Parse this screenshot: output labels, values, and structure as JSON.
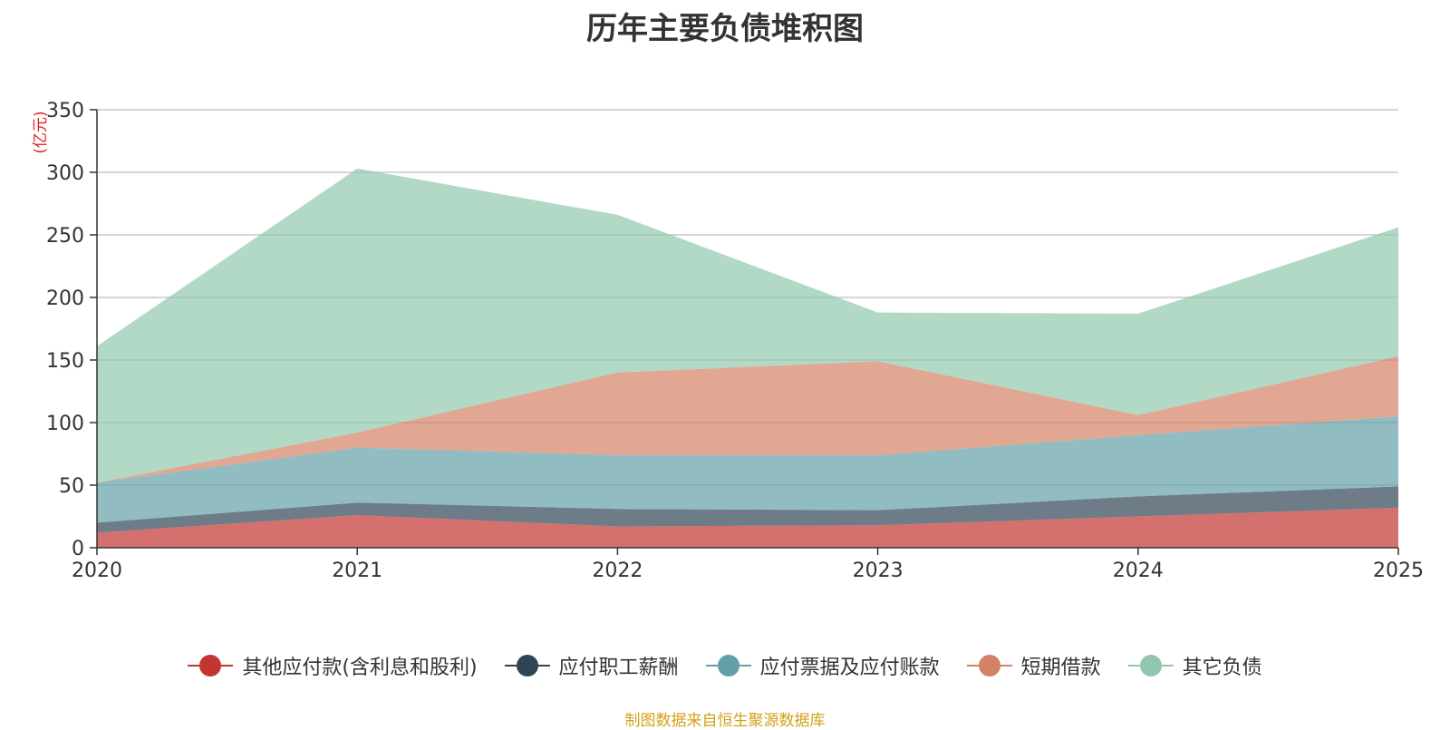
{
  "chart_data": {
    "type": "area",
    "stacked": true,
    "title": "历年主要负债堆积图",
    "ylabel": "(亿元)",
    "xlabel": "",
    "categories": [
      "2020",
      "2021",
      "2022",
      "2023",
      "2024",
      "2025"
    ],
    "ylim": [
      0,
      350
    ],
    "yticks": [
      0,
      50,
      100,
      150,
      200,
      250,
      300,
      350
    ],
    "grid": true,
    "legend_position": "bottom",
    "series": [
      {
        "name": "其他应付款(含利息和股利)",
        "color": "#c23531",
        "values": [
          12,
          26,
          17,
          18,
          25,
          32
        ]
      },
      {
        "name": "应付职工薪酬",
        "color": "#2f4554",
        "values": [
          8,
          10,
          14,
          12,
          16,
          17
        ]
      },
      {
        "name": "应付票据及应付账款",
        "color": "#61a0a8",
        "values": [
          32,
          44,
          43,
          44,
          49,
          56
        ]
      },
      {
        "name": "短期借款",
        "color": "#d48265",
        "values": [
          0,
          12,
          66,
          75,
          16,
          48
        ]
      },
      {
        "name": "其它负债",
        "color": "#91c7ae",
        "values": [
          109,
          211,
          126,
          39,
          81,
          103
        ]
      }
    ],
    "source": "制图数据来自恒生聚源数据库"
  }
}
